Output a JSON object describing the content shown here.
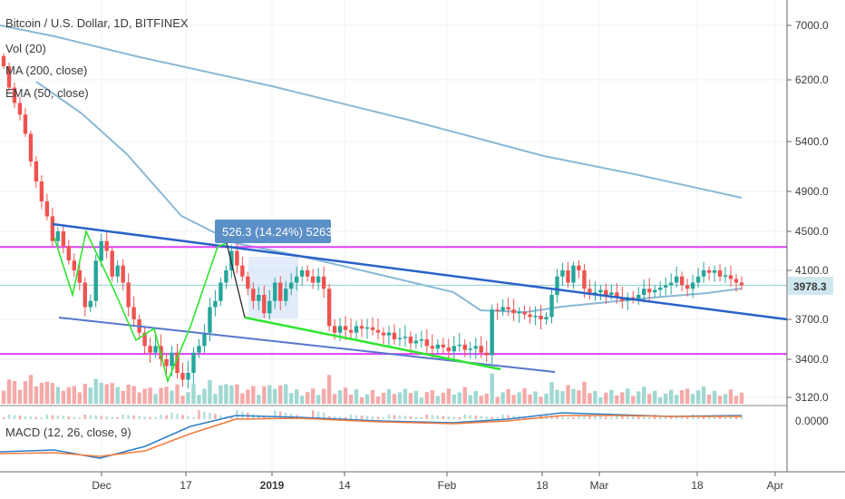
{
  "legend": {
    "title": "Bitcoin / U.S. Dollar, 1D, BITFINEX",
    "vol": "Vol (20)",
    "ma": "MA (200, close)",
    "ema": "EMA (50, close)",
    "macd": "MACD (12, 26, close, 9)"
  },
  "colors": {
    "up": "#26a69a",
    "down": "#ef5350",
    "ma": "#8ab8d6",
    "trend": "#2962c7",
    "support": "#e040fb",
    "zigzag": "#2ee52e",
    "measure_bg": "#5b8fc7",
    "last_price_bg": "#cfe8ef"
  },
  "measure": {
    "label": "526.3 (14.24%) 5263"
  },
  "last_price": {
    "label": "3978.3",
    "value": 3978.3
  },
  "chart_data": {
    "type": "candlestick",
    "title": "Bitcoin / U.S. Dollar, 1D, BITFINEX",
    "ylim": [
      2950,
      7250
    ],
    "y_ticks": [
      {
        "label": "7000.0",
        "value": 7000
      },
      {
        "label": "6200.0",
        "value": 6200
      },
      {
        "label": "5400.0",
        "value": 5400
      },
      {
        "label": "4900.0",
        "value": 4900
      },
      {
        "label": "4500.0",
        "value": 4500
      },
      {
        "label": "4100.0",
        "value": 4100
      },
      {
        "label": "3700.0",
        "value": 3700
      },
      {
        "label": "3400.0",
        "value": 3400
      },
      {
        "label": "3120.0",
        "value": 3120
      }
    ],
    "x_ticks": [
      {
        "label": "Dec",
        "bold": false
      },
      {
        "label": "17",
        "bold": false
      },
      {
        "label": "2019",
        "bold": true
      },
      {
        "label": "14",
        "bold": false
      },
      {
        "label": "Feb",
        "bold": false
      },
      {
        "label": "18",
        "bold": false
      },
      {
        "label": "Mar",
        "bold": false
      },
      {
        "label": "18",
        "bold": false
      },
      {
        "label": "Apr",
        "bold": false
      }
    ],
    "macd_tick": {
      "label": "0.0000"
    },
    "support_levels": [
      4340,
      3440
    ],
    "close": [
      6400,
      6100,
      5900,
      5750,
      5500,
      5200,
      5000,
      4800,
      4650,
      4400,
      4500,
      4350,
      4200,
      4100,
      4000,
      3800,
      3850,
      4200,
      4400,
      4300,
      4050,
      4150,
      4000,
      3800,
      3700,
      3600,
      3500,
      3450,
      3500,
      3400,
      3350,
      3450,
      3300,
      3250,
      3300,
      3450,
      3500,
      3600,
      3800,
      3850,
      4000,
      4100,
      4300,
      4150,
      4050,
      3950,
      3850,
      3900,
      3750,
      3850,
      4000,
      3850,
      3950,
      4000,
      4050,
      4100,
      4050,
      4000,
      4050,
      3950,
      3650,
      3600,
      3650,
      3620,
      3600,
      3650,
      3630,
      3640,
      3620,
      3600,
      3580,
      3600,
      3550,
      3560,
      3570,
      3520,
      3540,
      3550,
      3500,
      3480,
      3510,
      3490,
      3460,
      3500,
      3510,
      3470,
      3480,
      3500,
      3450,
      3430,
      3780,
      3770,
      3800,
      3780,
      3750,
      3760,
      3740,
      3720,
      3730,
      3700,
      3720,
      3900,
      4050,
      4100,
      4000,
      4150,
      4100,
      3950,
      3900,
      3920,
      3940,
      3900,
      3920,
      3880,
      3850,
      3880,
      3870,
      3900,
      3950,
      3920,
      3940,
      3960,
      3980,
      4000,
      4050,
      3980,
      3950,
      4000,
      4050,
      4100,
      4080,
      4100,
      4050,
      4060,
      4030,
      4000,
      3978
    ]
  }
}
